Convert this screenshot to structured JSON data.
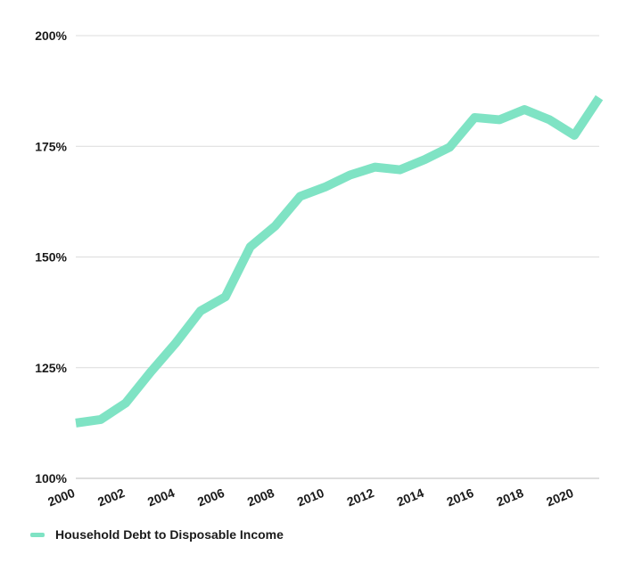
{
  "chart_data": {
    "type": "line",
    "title": "",
    "xlabel": "",
    "ylabel": "",
    "x": [
      2000,
      2001,
      2002,
      2003,
      2004,
      2005,
      2006,
      2007,
      2008,
      2009,
      2010,
      2011,
      2012,
      2013,
      2014,
      2015,
      2016,
      2017,
      2018,
      2019,
      2020,
      2021
    ],
    "x_tick_labels": [
      "2000",
      "2002",
      "2004",
      "2006",
      "2008",
      "2010",
      "2012",
      "2014",
      "2016",
      "2018",
      "2020"
    ],
    "y_tick_labels": [
      "200%",
      "175%",
      "150%",
      "125%",
      "100%"
    ],
    "ylim": [
      100,
      200
    ],
    "series": [
      {
        "name": "Household Debt to Disposable Income",
        "color": "#7fe3c4",
        "values": [
          112.5,
          113.3,
          117.0,
          124.0,
          130.5,
          137.8,
          141.0,
          152.3,
          157.0,
          163.7,
          165.8,
          168.5,
          170.3,
          169.7,
          172.0,
          174.8,
          181.5,
          181.0,
          183.3,
          181.0,
          177.5,
          186.0
        ]
      }
    ],
    "grid": true,
    "legend_position": "bottom-left"
  }
}
